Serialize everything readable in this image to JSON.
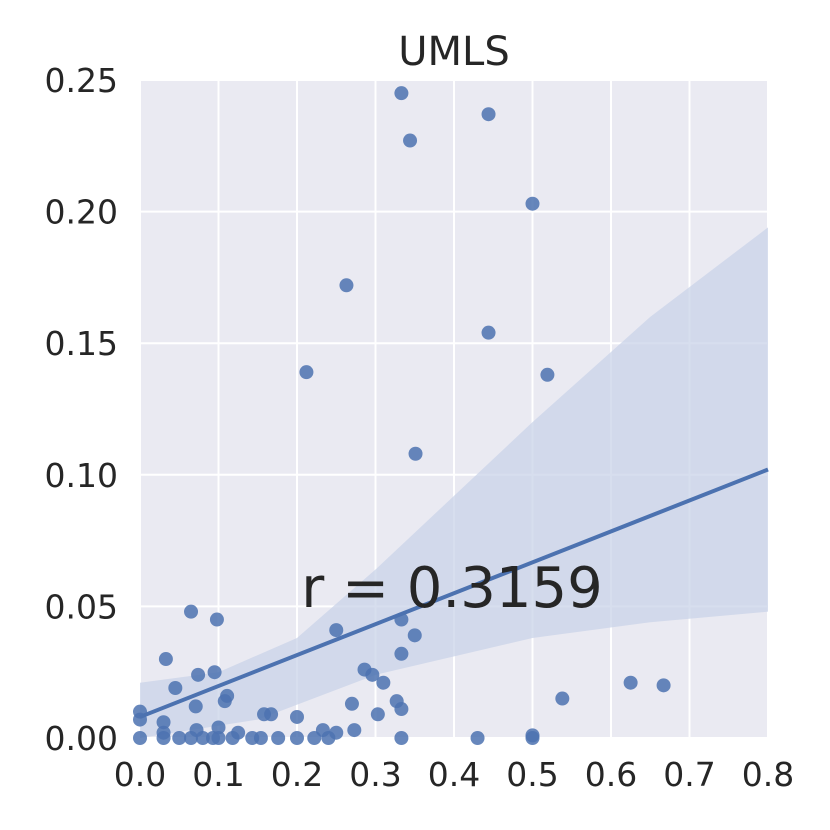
{
  "chart_data": {
    "type": "scatter",
    "title": "UMLS",
    "xlabel": "",
    "ylabel": "",
    "xlim": [
      0.0,
      0.8
    ],
    "ylim": [
      0.0,
      0.25
    ],
    "x_ticks": [
      "0.0",
      "0.1",
      "0.2",
      "0.3",
      "0.4",
      "0.5",
      "0.6",
      "0.7",
      "0.8"
    ],
    "y_ticks": [
      "0.00",
      "0.05",
      "0.10",
      "0.15",
      "0.20",
      "0.25"
    ],
    "grid": true,
    "annotation": "r = 0.3159",
    "colors": {
      "background": "#eaeaf2",
      "grid": "#ffffff",
      "points": "#4c72b0",
      "band": "#c9d3e8"
    },
    "regression": {
      "x": [
        0.0,
        0.8
      ],
      "y": [
        0.008,
        0.102
      ],
      "ci_lower": [
        [
          0.0,
          0.0
        ],
        [
          0.15,
          0.007
        ],
        [
          0.3,
          0.024
        ],
        [
          0.5,
          0.038
        ],
        [
          0.65,
          0.044
        ],
        [
          0.8,
          0.048
        ]
      ],
      "ci_upper": [
        [
          0.0,
          0.021
        ],
        [
          0.1,
          0.025
        ],
        [
          0.2,
          0.038
        ],
        [
          0.3,
          0.064
        ],
        [
          0.5,
          0.12
        ],
        [
          0.65,
          0.16
        ],
        [
          0.8,
          0.194
        ]
      ]
    },
    "points": [
      {
        "x": 0.333,
        "y": 0.245
      },
      {
        "x": 0.444,
        "y": 0.237
      },
      {
        "x": 0.344,
        "y": 0.227
      },
      {
        "x": 0.5,
        "y": 0.203
      },
      {
        "x": 0.263,
        "y": 0.172
      },
      {
        "x": 0.444,
        "y": 0.154
      },
      {
        "x": 0.212,
        "y": 0.139
      },
      {
        "x": 0.519,
        "y": 0.138
      },
      {
        "x": 0.351,
        "y": 0.108
      },
      {
        "x": 0.065,
        "y": 0.048
      },
      {
        "x": 0.098,
        "y": 0.045
      },
      {
        "x": 0.333,
        "y": 0.045
      },
      {
        "x": 0.25,
        "y": 0.041
      },
      {
        "x": 0.35,
        "y": 0.039
      },
      {
        "x": 0.333,
        "y": 0.032
      },
      {
        "x": 0.033,
        "y": 0.03
      },
      {
        "x": 0.286,
        "y": 0.026
      },
      {
        "x": 0.095,
        "y": 0.025
      },
      {
        "x": 0.074,
        "y": 0.024
      },
      {
        "x": 0.296,
        "y": 0.024
      },
      {
        "x": 0.31,
        "y": 0.021
      },
      {
        "x": 0.625,
        "y": 0.021
      },
      {
        "x": 0.667,
        "y": 0.02
      },
      {
        "x": 0.045,
        "y": 0.019
      },
      {
        "x": 0.111,
        "y": 0.016
      },
      {
        "x": 0.538,
        "y": 0.015
      },
      {
        "x": 0.108,
        "y": 0.014
      },
      {
        "x": 0.327,
        "y": 0.014
      },
      {
        "x": 0.27,
        "y": 0.013
      },
      {
        "x": 0.071,
        "y": 0.012
      },
      {
        "x": 0.333,
        "y": 0.011
      },
      {
        "x": 0.0,
        "y": 0.01
      },
      {
        "x": 0.158,
        "y": 0.009
      },
      {
        "x": 0.167,
        "y": 0.009
      },
      {
        "x": 0.303,
        "y": 0.009
      },
      {
        "x": 0.2,
        "y": 0.008
      },
      {
        "x": 0.0,
        "y": 0.007
      },
      {
        "x": 0.03,
        "y": 0.006
      },
      {
        "x": 0.1,
        "y": 0.004
      },
      {
        "x": 0.072,
        "y": 0.003
      },
      {
        "x": 0.233,
        "y": 0.003
      },
      {
        "x": 0.273,
        "y": 0.003
      },
      {
        "x": 0.25,
        "y": 0.002
      },
      {
        "x": 0.03,
        "y": 0.002
      },
      {
        "x": 0.125,
        "y": 0.002
      },
      {
        "x": 0.0,
        "y": 0.0
      },
      {
        "x": 0.03,
        "y": 0.0
      },
      {
        "x": 0.05,
        "y": 0.0
      },
      {
        "x": 0.065,
        "y": 0.0
      },
      {
        "x": 0.08,
        "y": 0.0
      },
      {
        "x": 0.093,
        "y": 0.0
      },
      {
        "x": 0.1,
        "y": 0.0
      },
      {
        "x": 0.118,
        "y": 0.0
      },
      {
        "x": 0.143,
        "y": 0.0
      },
      {
        "x": 0.154,
        "y": 0.0
      },
      {
        "x": 0.176,
        "y": 0.0
      },
      {
        "x": 0.2,
        "y": 0.0
      },
      {
        "x": 0.222,
        "y": 0.0
      },
      {
        "x": 0.24,
        "y": 0.0
      },
      {
        "x": 0.333,
        "y": 0.0
      },
      {
        "x": 0.43,
        "y": 0.0
      },
      {
        "x": 0.5,
        "y": 0.0
      },
      {
        "x": 0.5,
        "y": 0.001
      }
    ]
  }
}
